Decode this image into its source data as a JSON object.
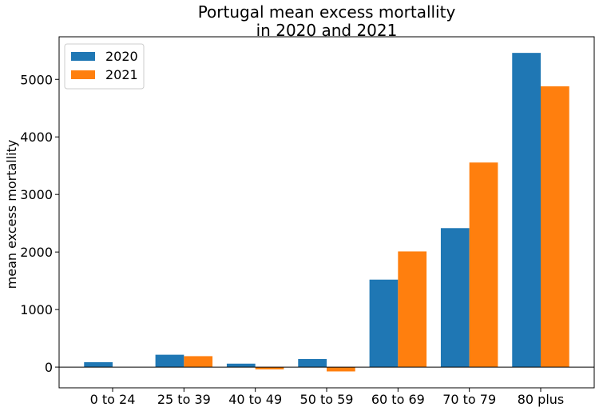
{
  "chart_data": {
    "type": "bar",
    "title_lines": [
      "Portugal mean excess mortallity",
      "in 2020 and 2021"
    ],
    "ylabel": "mean excess mortallity",
    "xlabel": "",
    "categories": [
      "0 to 24",
      "25 to 39",
      "40 to 49",
      "50 to 59",
      "60 to 69",
      "70 to 79",
      "80 plus"
    ],
    "series": [
      {
        "name": "2020",
        "color": "#1f77b4",
        "values": [
          85,
          215,
          60,
          140,
          1520,
          2415,
          5460
        ]
      },
      {
        "name": "2021",
        "color": "#ff7f0e",
        "values": [
          -5,
          190,
          -40,
          -75,
          2010,
          3555,
          4880
        ]
      }
    ],
    "ylim": [
      -360,
      5740
    ],
    "yticks": [
      0,
      1000,
      2000,
      3000,
      4000,
      5000
    ],
    "zero_line": true,
    "grid": false,
    "legend_position": "top-left"
  }
}
